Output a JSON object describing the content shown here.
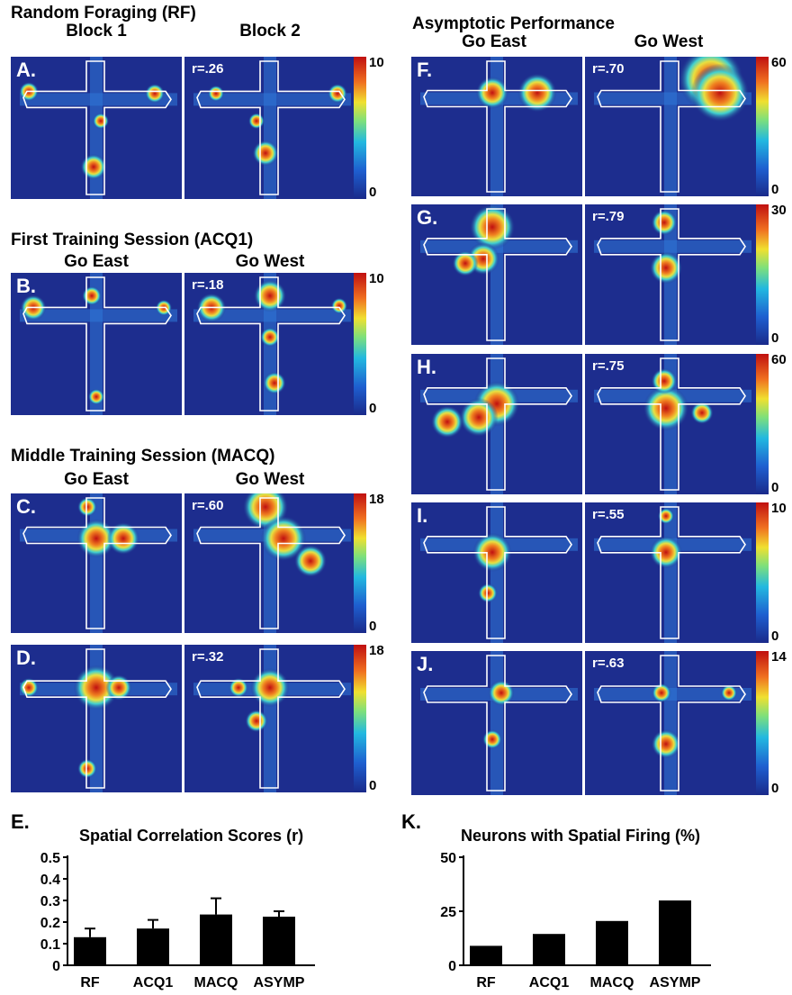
{
  "sections": {
    "rf": "Random Foraging (RF)",
    "acq1": "First Training Session (ACQ1)",
    "macq": "Middle Training Session (MACQ)",
    "asymp": "Asymptotic Performance"
  },
  "columns": {
    "block1": "Block 1",
    "block2": "Block 2",
    "east": "Go East",
    "west": "Go West"
  },
  "panels": {
    "A": {
      "letter": "A.",
      "r": "r=.26",
      "cmax": "10",
      "cmin": "0"
    },
    "B": {
      "letter": "B.",
      "r": "r=.18",
      "cmax": "10",
      "cmin": "0"
    },
    "C": {
      "letter": "C.",
      "r": "r=.60",
      "cmax": "18",
      "cmin": "0"
    },
    "D": {
      "letter": "D.",
      "r": "r=.32",
      "cmax": "18",
      "cmin": "0"
    },
    "F": {
      "letter": "F.",
      "r": "r=.70",
      "cmax": "60",
      "cmin": "0"
    },
    "G": {
      "letter": "G.",
      "r": "r=.79",
      "cmax": "30",
      "cmin": "0"
    },
    "H": {
      "letter": "H.",
      "r": "r=.75",
      "cmax": "60",
      "cmin": "0"
    },
    "I": {
      "letter": "I.",
      "r": "r=.55",
      "cmax": "10",
      "cmin": "0"
    },
    "J": {
      "letter": "J.",
      "r": "r=.63",
      "cmax": "14",
      "cmin": "0"
    }
  },
  "colors": {
    "heatmap_background": "#1d2d8e",
    "bar": "#000000",
    "path": "#ffffff"
  },
  "chart_data": [
    {
      "id": "E",
      "letter": "E.",
      "type": "bar",
      "title": "Spatial Correlation Scores (r)",
      "categories": [
        "RF",
        "ACQ1",
        "MACQ",
        "ASYMP"
      ],
      "values": [
        0.13,
        0.17,
        0.235,
        0.225
      ],
      "errors": [
        0.04,
        0.04,
        0.075,
        0.025
      ],
      "ylim": [
        0,
        0.5
      ],
      "yticks": [
        "0",
        "0.1",
        "0.2",
        "0.3",
        "0.4",
        "0.5"
      ],
      "ytick_values": [
        0,
        0.1,
        0.2,
        0.3,
        0.4,
        0.5
      ]
    },
    {
      "id": "K",
      "letter": "K.",
      "type": "bar",
      "title": "Neurons with Spatial Firing (%)",
      "categories": [
        "RF",
        "ACQ1",
        "MACQ",
        "ASYMP"
      ],
      "values": [
        9,
        14.5,
        20.5,
        30
      ],
      "ylim": [
        0,
        50
      ],
      "yticks": [
        "0",
        "25",
        "50"
      ],
      "ytick_values": [
        0,
        25,
        50
      ]
    }
  ]
}
